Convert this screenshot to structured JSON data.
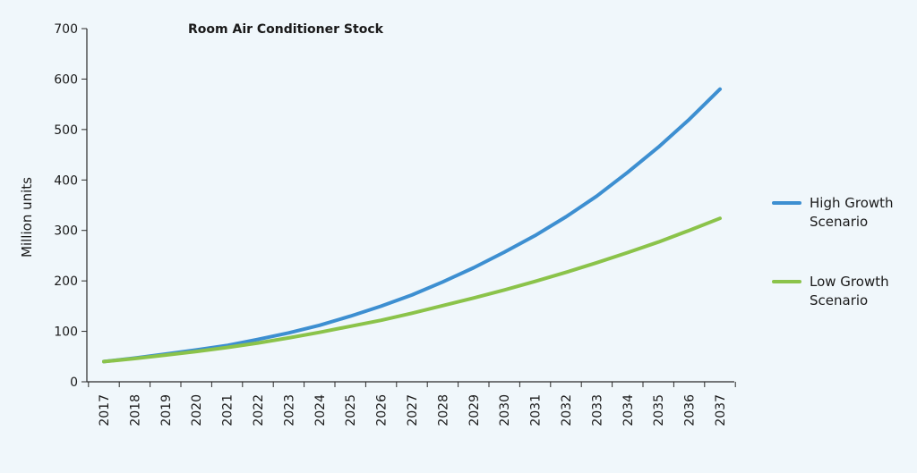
{
  "chart_data": {
    "type": "line",
    "title": "Room Air Conditioner Stock",
    "xlabel": "",
    "ylabel": "Million units",
    "ylim": [
      0,
      700
    ],
    "yticks": [
      0,
      100,
      200,
      300,
      400,
      500,
      600,
      700
    ],
    "grid": false,
    "legend_position": "right",
    "x": [
      "2017",
      "2018",
      "2019",
      "2020",
      "2021",
      "2022",
      "2023",
      "2024",
      "2025",
      "2026",
      "2027",
      "2028",
      "2029",
      "2030",
      "2031",
      "2032",
      "2033",
      "2034",
      "2035",
      "2036",
      "2037"
    ],
    "series": [
      {
        "name": "High Growth Scenario",
        "color": "#3d8fd1",
        "values": [
          40,
          47,
          55,
          63,
          72,
          84,
          97,
          112,
          130,
          150,
          172,
          198,
          226,
          257,
          290,
          327,
          368,
          415,
          465,
          520,
          580
        ]
      },
      {
        "name": "Low Growth Scenario",
        "color": "#8bc34a",
        "values": [
          40,
          46,
          53,
          60,
          68,
          77,
          87,
          98,
          110,
          122,
          136,
          151,
          166,
          182,
          199,
          217,
          236,
          256,
          277,
          300,
          324
        ]
      }
    ]
  }
}
